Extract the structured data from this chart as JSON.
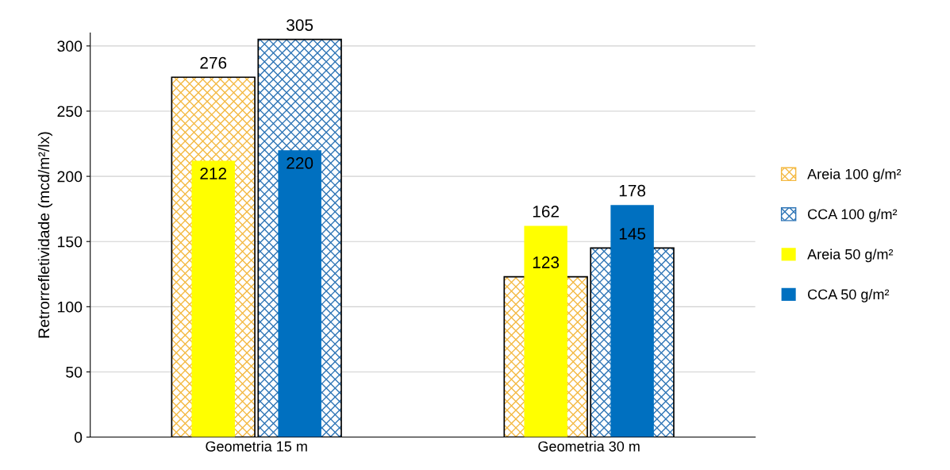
{
  "chart_data": {
    "type": "bar",
    "ylabel": "Retrorrefletividade (mcd/m²/lx)",
    "categories": [
      "Geometria 15 m",
      "Geometria 30 m"
    ],
    "series": [
      {
        "name": "Areia 100 g/m²",
        "color": "#f4b942",
        "values": [
          276,
          123
        ]
      },
      {
        "name": "CCA 100 g/m²",
        "color": "#2e75b6",
        "values": [
          305,
          145
        ]
      },
      {
        "name": "Areia 50 g/m²",
        "color": "#ffff00",
        "values": [
          212,
          162
        ]
      },
      {
        "name": "CCA 50 g/m²",
        "color": "#0070c0",
        "values": [
          220,
          178
        ]
      }
    ],
    "ylim": [
      0,
      310
    ],
    "yticks": [
      0,
      50,
      100,
      150,
      200,
      250,
      300
    ],
    "grid": "y",
    "legend": "right",
    "data_labels": true
  }
}
